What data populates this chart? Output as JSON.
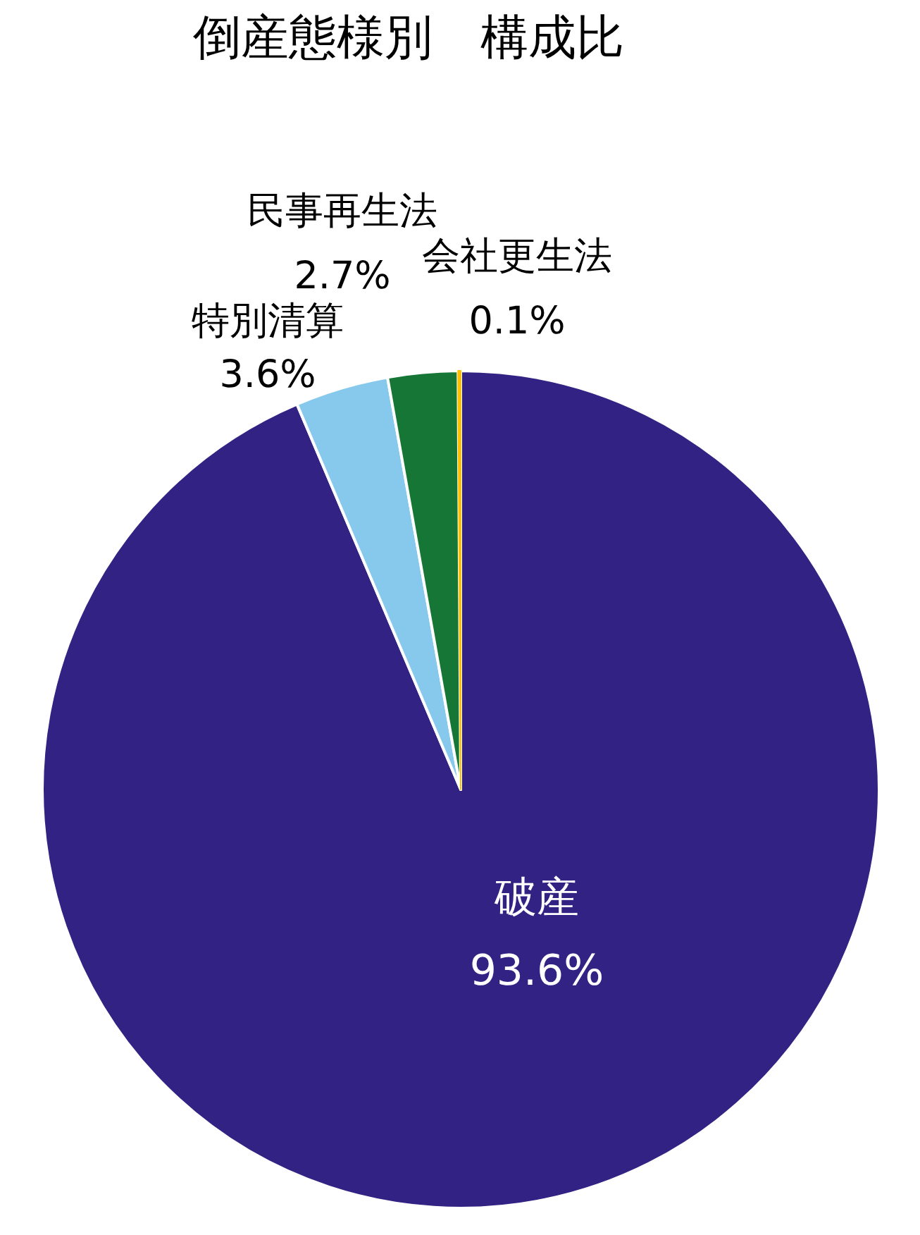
{
  "chart_data": {
    "type": "pie",
    "title": "倒産態様別　構成比",
    "categories": [
      "破産",
      "特別清算",
      "民事再生法",
      "会社更生法"
    ],
    "values": [
      93.6,
      3.6,
      2.7,
      0.1
    ],
    "colors": [
      "#312283",
      "#87c9ed",
      "#167635",
      "#ffc000"
    ],
    "value_labels": [
      "93.6%",
      "3.6%",
      "2.7%",
      "0.1%"
    ]
  }
}
